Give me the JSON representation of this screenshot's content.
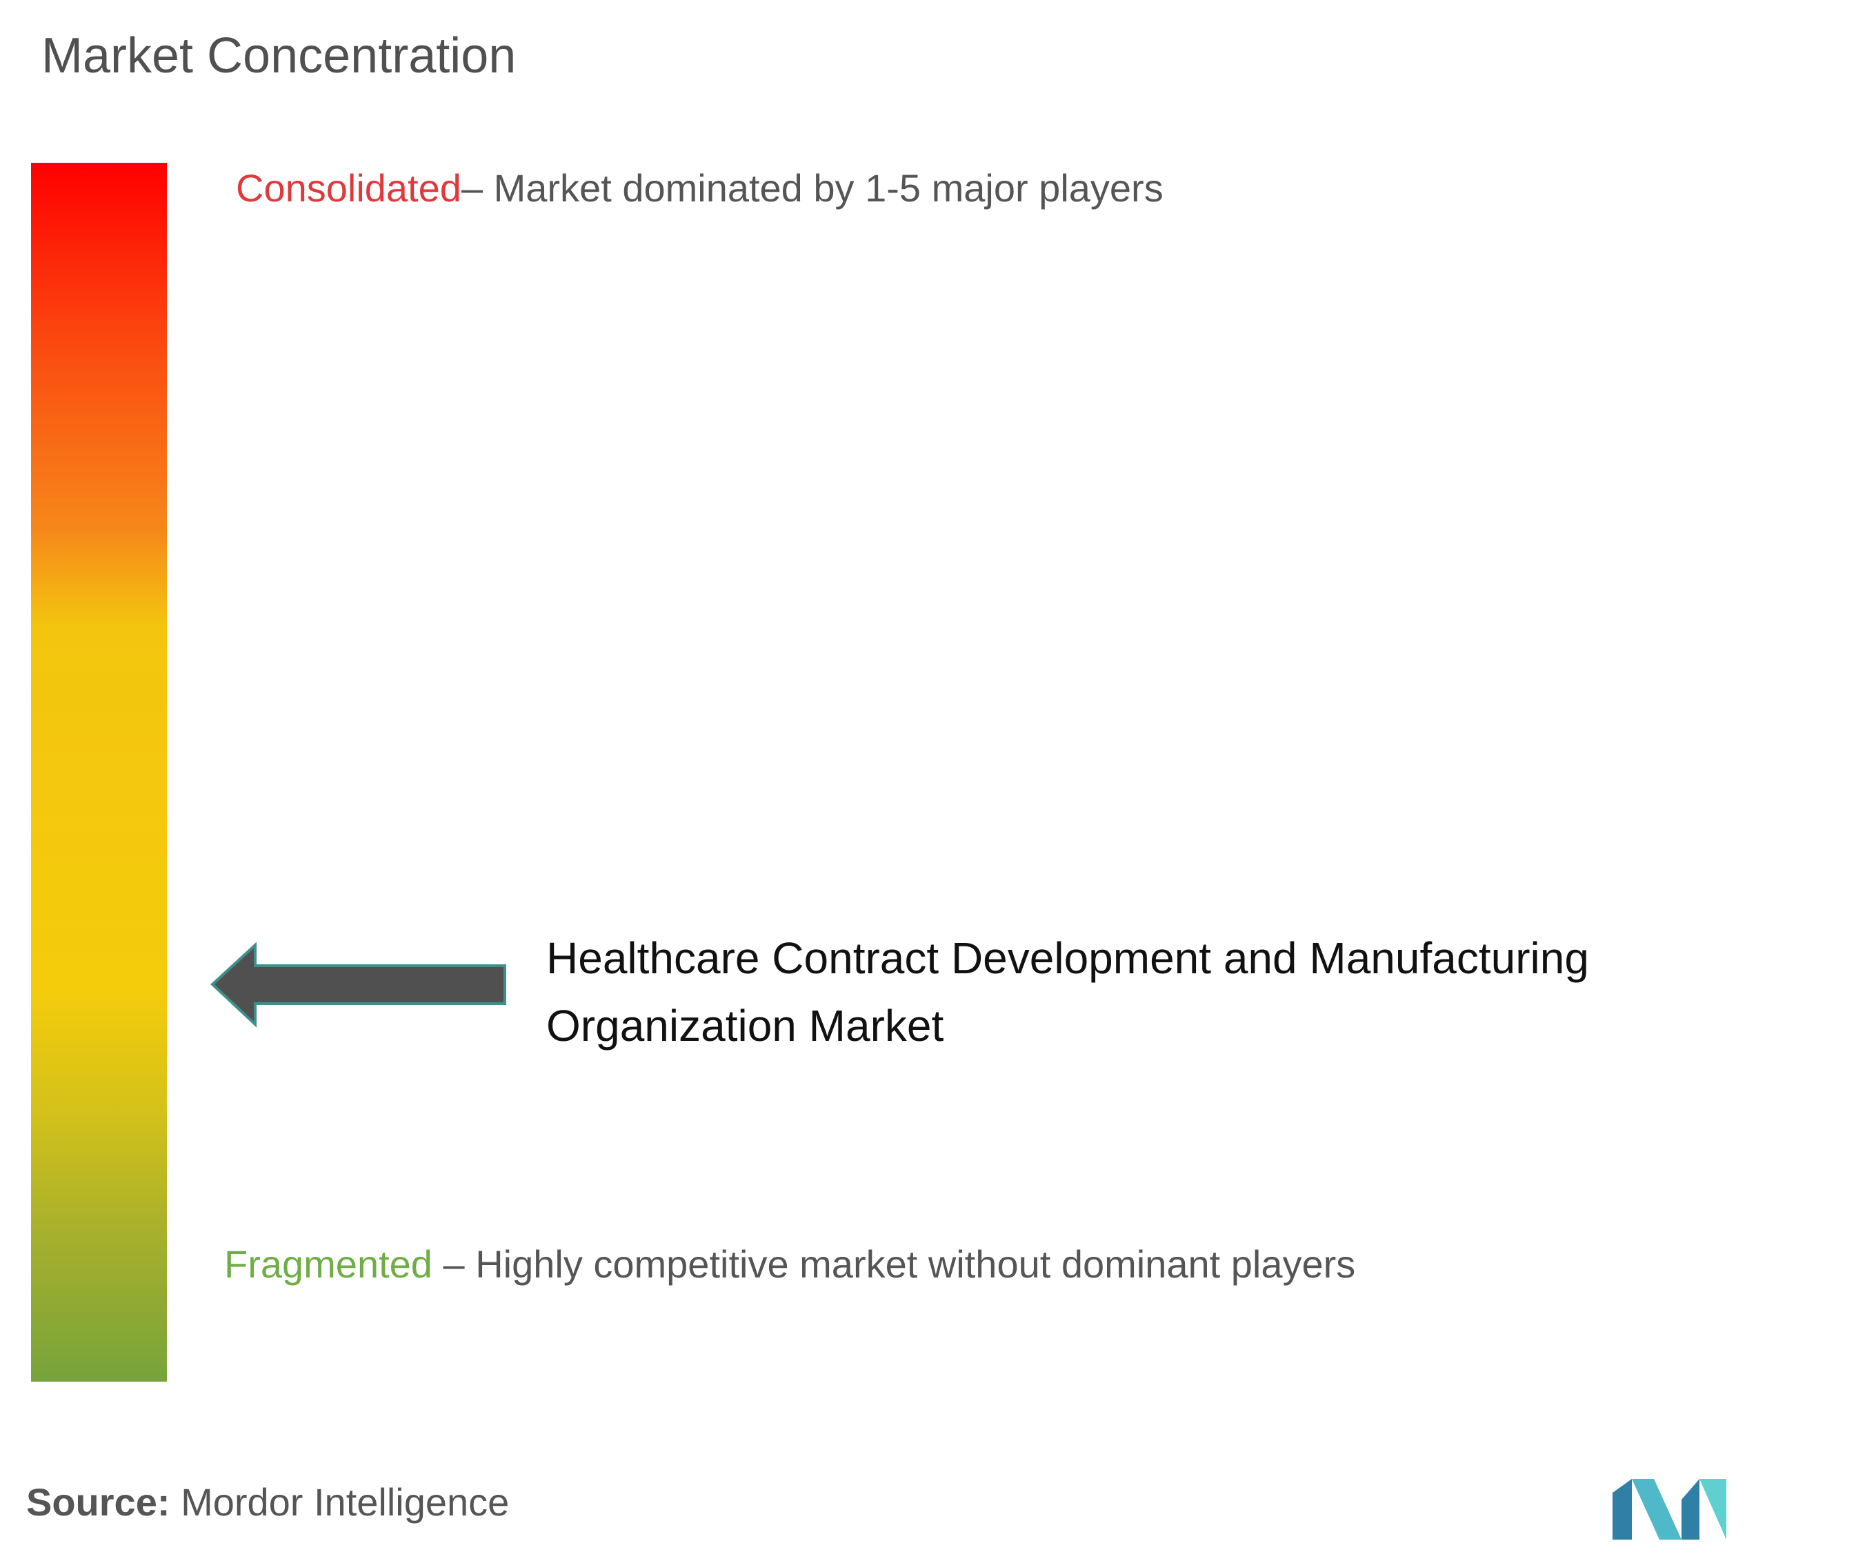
{
  "header": {
    "title": "Market Concentration"
  },
  "scale": {
    "top_label": "Consolidated",
    "top_description": "– Market dominated by 1-5 major players",
    "bottom_label": "Fragmented",
    "bottom_description": " – Highly competitive market without dominant players"
  },
  "marker": {
    "label": "Healthcare Contract Development and Manufacturing Organization Market"
  },
  "footer": {
    "source_label": "Source:",
    "source_name": "Mordor Intelligence"
  }
}
